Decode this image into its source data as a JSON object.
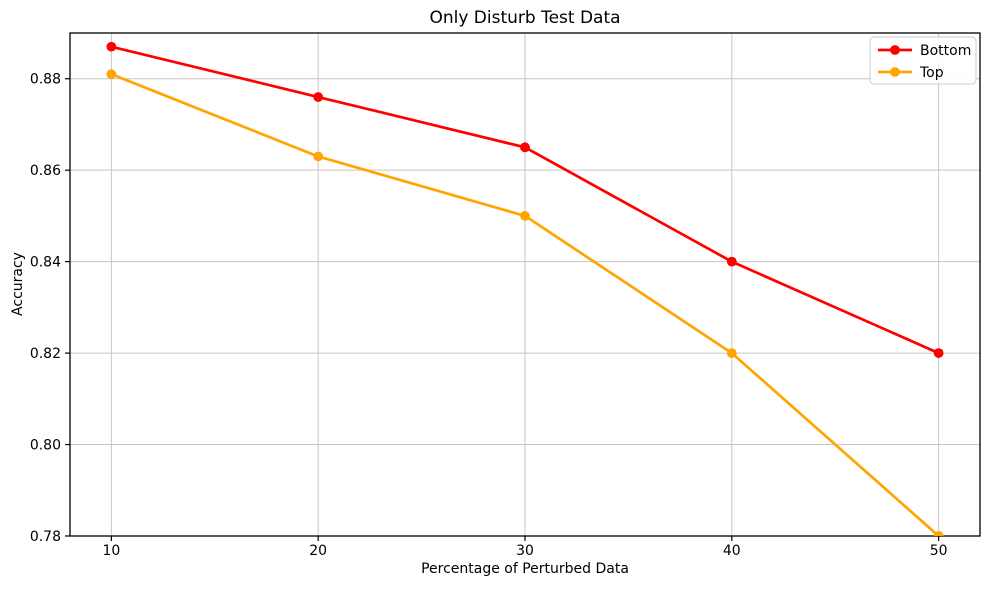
{
  "chart_data": {
    "type": "line",
    "title": "Only Disturb Test Data",
    "xlabel": "Percentage of Perturbed Data",
    "ylabel": "Accuracy",
    "x": [
      10,
      20,
      30,
      40,
      50
    ],
    "series": [
      {
        "name": "Bottom",
        "color": "#ff0000",
        "marker": "circle",
        "values": [
          0.887,
          0.876,
          0.865,
          0.84,
          0.82
        ]
      },
      {
        "name": "Top",
        "color": "#ffa500",
        "marker": "circle",
        "values": [
          0.881,
          0.863,
          0.85,
          0.82,
          0.78
        ]
      }
    ],
    "xlim": [
      8,
      52
    ],
    "ylim": [
      0.78,
      0.89
    ],
    "xticks": [
      10,
      20,
      30,
      40,
      50
    ],
    "xtick_labels": [
      "10",
      "20",
      "30",
      "40",
      "50"
    ],
    "yticks": [
      0.78,
      0.8,
      0.82,
      0.84,
      0.86,
      0.88
    ],
    "ytick_labels": [
      "0.78",
      "0.80",
      "0.82",
      "0.84",
      "0.86",
      "0.88"
    ],
    "grid": true,
    "legend": {
      "entries": [
        "Bottom",
        "Top"
      ],
      "position": "upper right"
    },
    "colors": {
      "grid": "#c6c6c6",
      "spine": "#000000",
      "background": "#ffffff",
      "legend_border": "#cccccc",
      "legend_background": "#ffffff"
    }
  }
}
